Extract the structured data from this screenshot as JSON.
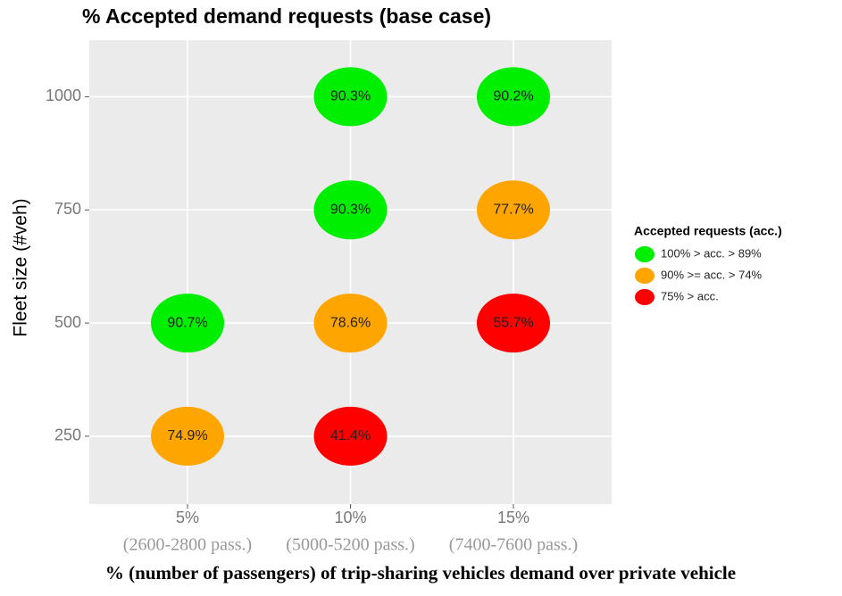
{
  "chart_data": {
    "type": "scatter",
    "title": "% Accepted demand requests (base case)",
    "x_label": "% (number of passengers) of trip-sharing vehicles demand over private vehicle",
    "y_label": "Fleet size (#veh)",
    "categories": [
      "5%",
      "10%",
      "15%"
    ],
    "category_sublabels": [
      "(2600-2800 pass.)",
      "(5000-5200 pass.)",
      "(7400-7600 pass.)"
    ],
    "ylim": [
      100,
      1125
    ],
    "yticks": [
      250,
      500,
      750,
      1000
    ],
    "grid": true,
    "legend_title": "Accepted requests (acc.)",
    "legend_position": "right",
    "series": [
      {
        "name": "100% > acc. > 89%",
        "color": "#00ee00",
        "x": [
          "10%",
          "15%",
          "10%",
          "5%"
        ],
        "y": [
          1000,
          1000,
          750,
          500
        ],
        "values": [
          90.3,
          90.2,
          90.3,
          90.7
        ],
        "value_labels": [
          "90.3%",
          "90.2%",
          "90.3%",
          "90.7%"
        ]
      },
      {
        "name": "90% >= acc. > 74%",
        "color": "#ffa500",
        "x": [
          "15%",
          "10%",
          "5%"
        ],
        "y": [
          750,
          500,
          250
        ],
        "values": [
          77.7,
          78.6,
          74.9
        ],
        "value_labels": [
          "77.7%",
          "78.6%",
          "74.9%"
        ]
      },
      {
        "name": "75% > acc.",
        "color": "#ff0000",
        "x": [
          "15%",
          "10%"
        ],
        "y": [
          500,
          250
        ],
        "values": [
          55.7,
          41.4
        ],
        "value_labels": [
          "55.7%",
          "41.4%"
        ]
      }
    ]
  }
}
